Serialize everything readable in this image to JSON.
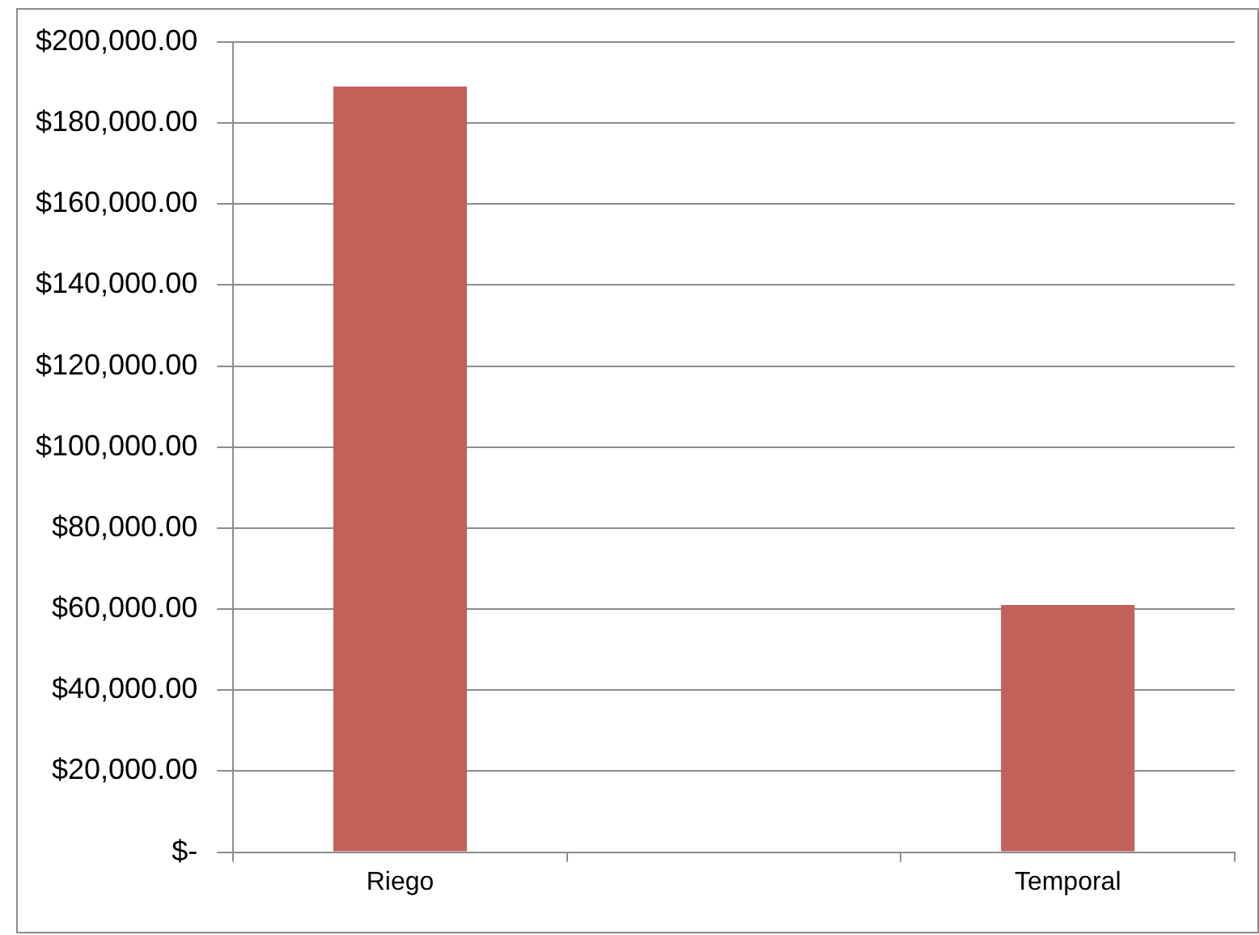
{
  "chart_data": {
    "type": "bar",
    "categories": [
      "Riego",
      null,
      "Temporal"
    ],
    "values": [
      189000,
      null,
      61000
    ],
    "color": "#c4605a",
    "ylim": [
      0,
      200000
    ],
    "yticks": [
      {
        "value": 0,
        "label": "$-"
      },
      {
        "value": 20000,
        "label": "$20,000.00"
      },
      {
        "value": 40000,
        "label": "$40,000.00"
      },
      {
        "value": 60000,
        "label": "$60,000.00"
      },
      {
        "value": 80000,
        "label": "$80,000.00"
      },
      {
        "value": 100000,
        "label": "$100,000.00"
      },
      {
        "value": 120000,
        "label": "$120,000.00"
      },
      {
        "value": 140000,
        "label": "$140,000.00"
      },
      {
        "value": 160000,
        "label": "$160,000.00"
      },
      {
        "value": 180000,
        "label": "$180,000.00"
      },
      {
        "value": 200000,
        "label": "$200,000.00"
      }
    ],
    "grid": "y",
    "legend": false
  }
}
